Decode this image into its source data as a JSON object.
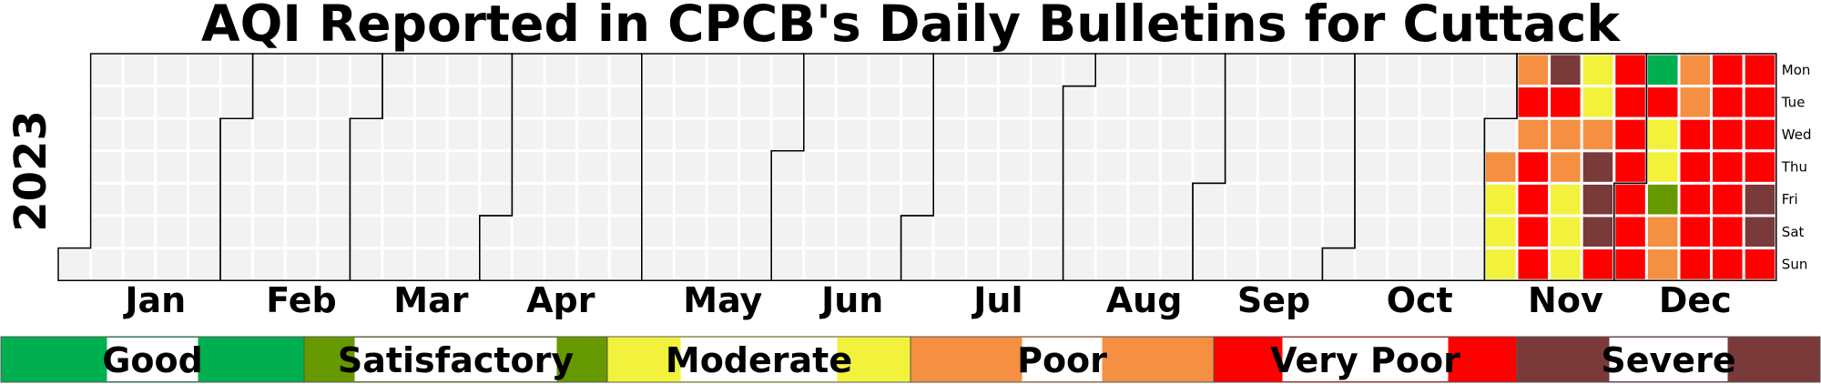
{
  "chart_data": {
    "type": "heatmap",
    "title": "AQI Reported in CPCB's Daily Bulletins for Cuttack",
    "year_label": "2023",
    "year": 2023,
    "months": [
      "Jan",
      "Feb",
      "Mar",
      "Apr",
      "May",
      "Jun",
      "Jul",
      "Aug",
      "Sep",
      "Oct",
      "Nov",
      "Dec"
    ],
    "weekdays": [
      "Mon",
      "Tue",
      "Wed",
      "Thu",
      "Fri",
      "Sat",
      "Sun"
    ],
    "empty_color": "#f2f2f2",
    "categories": [
      {
        "name": "Good",
        "color": "#00b050"
      },
      {
        "name": "Satisfactory",
        "color": "#669900"
      },
      {
        "name": "Moderate",
        "color": "#f2f23c"
      },
      {
        "name": "Poor",
        "color": "#f58f41"
      },
      {
        "name": "Very Poor",
        "color": "#ff0000"
      },
      {
        "name": "Severe",
        "color": "#7a3a3a"
      }
    ],
    "week_start_date": "2023-11-06",
    "daily_category": [
      "Poor",
      "Very Poor",
      "Poor",
      "Very Poor",
      "Very Poor",
      "Very Poor",
      "Very Poor",
      "Severe",
      "Very Poor",
      "Poor",
      "Poor",
      "Moderate",
      "Moderate",
      "Moderate",
      "Moderate",
      "Moderate",
      "Poor",
      "Severe",
      "Severe",
      "Severe",
      "Very Poor",
      "Very Poor",
      "Very Poor",
      "Very Poor",
      "Very Poor",
      "Very Poor",
      "Very Poor",
      "Very Poor",
      "Good",
      "Very Poor",
      "Moderate",
      "Moderate",
      "Satisfactory",
      "Poor",
      "Poor",
      "Poor",
      "Poor",
      "Very Poor",
      "Very Poor",
      "Very Poor",
      "Very Poor",
      "Very Poor",
      "Very Poor",
      "Very Poor",
      "Very Poor",
      "Very Poor",
      "Very Poor",
      "Very Poor",
      "Very Poor",
      "Very Poor",
      "Very Poor",
      "Very Poor",
      "Very Poor",
      "Severe",
      "Severe",
      "Very Poor"
    ],
    "pre_week_days": [
      {
        "date": "2023-11-02",
        "category": "Poor"
      },
      {
        "date": "2023-11-03",
        "category": "Moderate"
      },
      {
        "date": "2023-11-04",
        "category": "Moderate"
      },
      {
        "date": "2023-11-05",
        "category": "Moderate"
      }
    ]
  }
}
